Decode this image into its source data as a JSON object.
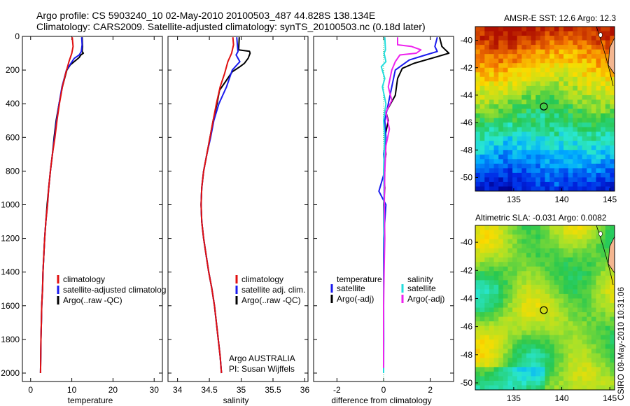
{
  "header": {
    "line1": "Argo profile: CS 5903240_10 02-May-2010 20100503_487 44.828S 138.134E",
    "line2": "Climatology: CARS2009. Satellite-adjusted climatology: synTS_20100503.nc (0.18d later)"
  },
  "colors": {
    "climatology": "#e01010",
    "satellite": "#1a1aee",
    "argo": "#000000",
    "sal_satellite": "#22dddd",
    "sal_argo": "#ee22ee"
  },
  "chart_data": [
    {
      "type": "line",
      "id": "temperature",
      "xlabel": "temperature",
      "ylabel": "",
      "xlim": [
        -2,
        32
      ],
      "ylim": [
        2050,
        0
      ],
      "xticks": [
        0,
        10,
        20,
        30
      ],
      "yticks": [
        0,
        200,
        400,
        600,
        800,
        1000,
        1200,
        1400,
        1600,
        1800,
        2000
      ],
      "legend": {
        "entries": [
          "climatology",
          "satellite-adjusted climatolog",
          "Argo(..raw -QC)"
        ]
      },
      "series": [
        {
          "name": "climatology",
          "role": "climatology",
          "points": [
            [
              10.1,
              5
            ],
            [
              10.3,
              60
            ],
            [
              10.0,
              100
            ],
            [
              9.3,
              150
            ],
            [
              8.5,
              220
            ],
            [
              7.7,
              300
            ],
            [
              7.0,
              400
            ],
            [
              6.4,
              500
            ],
            [
              5.9,
              600
            ],
            [
              5.3,
              700
            ],
            [
              4.8,
              800
            ],
            [
              4.4,
              900
            ],
            [
              4.1,
              1000
            ],
            [
              3.7,
              1100
            ],
            [
              3.4,
              1200
            ],
            [
              3.2,
              1300
            ],
            [
              3.0,
              1400
            ],
            [
              2.9,
              1500
            ],
            [
              2.7,
              1600
            ],
            [
              2.6,
              1700
            ],
            [
              2.5,
              1800
            ],
            [
              2.45,
              1900
            ],
            [
              2.4,
              2000
            ]
          ]
        },
        {
          "name": "satellite-adjusted climatology",
          "role": "satellite",
          "points": [
            [
              12.4,
              5
            ],
            [
              12.5,
              50
            ],
            [
              12.3,
              90
            ],
            [
              11.8,
              110
            ],
            [
              10.6,
              130
            ],
            [
              8.7,
              200
            ],
            [
              7.6,
              300
            ],
            [
              6.9,
              400
            ],
            [
              6.3,
              500
            ],
            [
              5.8,
              600
            ],
            [
              5.3,
              700
            ],
            [
              4.8,
              800
            ],
            [
              4.4,
              900
            ],
            [
              4.1,
              1000
            ],
            [
              3.7,
              1100
            ],
            [
              3.4,
              1200
            ],
            [
              3.2,
              1300
            ],
            [
              3.0,
              1400
            ],
            [
              2.9,
              1500
            ],
            [
              2.7,
              1600
            ],
            [
              2.6,
              1700
            ],
            [
              2.5,
              1800
            ],
            [
              2.45,
              1900
            ],
            [
              2.4,
              2000
            ]
          ]
        },
        {
          "name": "Argo(..raw -QC)",
          "role": "argo",
          "points": [
            [
              12.5,
              5
            ],
            [
              12.6,
              60
            ],
            [
              12.5,
              90
            ],
            [
              12.8,
              100
            ],
            [
              12.2,
              110
            ],
            [
              11.8,
              125
            ],
            [
              9.6,
              170
            ],
            [
              8.8,
              200
            ],
            [
              7.7,
              300
            ],
            [
              6.9,
              400
            ],
            [
              6.2,
              500
            ],
            [
              5.7,
              600
            ],
            [
              5.3,
              700
            ],
            [
              4.8,
              800
            ],
            [
              4.4,
              900
            ],
            [
              4.0,
              1000
            ],
            [
              3.7,
              1100
            ],
            [
              3.4,
              1200
            ],
            [
              3.2,
              1300
            ],
            [
              3.0,
              1400
            ],
            [
              2.9,
              1500
            ],
            [
              2.7,
              1600
            ],
            [
              2.6,
              1700
            ],
            [
              2.5,
              1800
            ],
            [
              2.45,
              1900
            ],
            [
              2.4,
              2000
            ]
          ]
        }
      ]
    },
    {
      "type": "line",
      "id": "salinity",
      "xlabel": "salinity",
      "xlim": [
        33.85,
        36.05
      ],
      "ylim": [
        2050,
        0
      ],
      "xticks": [
        34,
        34.5,
        35,
        35.5,
        36
      ],
      "legend": {
        "entries": [
          "climatology",
          "satellite adj. clim.",
          "Argo(..raw -QC)"
        ]
      },
      "annotation": [
        "Argo AUSTRALIA",
        "PI: Susan Wijffels"
      ],
      "series": [
        {
          "name": "climatology",
          "role": "climatology",
          "points": [
            [
              34.87,
              5
            ],
            [
              34.88,
              50
            ],
            [
              34.85,
              100
            ],
            [
              34.79,
              150
            ],
            [
              34.74,
              220
            ],
            [
              34.67,
              300
            ],
            [
              34.61,
              400
            ],
            [
              34.56,
              500
            ],
            [
              34.51,
              600
            ],
            [
              34.46,
              700
            ],
            [
              34.41,
              800
            ],
            [
              34.38,
              900
            ],
            [
              34.37,
              1000
            ],
            [
              34.38,
              1100
            ],
            [
              34.41,
              1200
            ],
            [
              34.45,
              1300
            ],
            [
              34.49,
              1400
            ],
            [
              34.54,
              1500
            ],
            [
              34.58,
              1600
            ],
            [
              34.61,
              1700
            ],
            [
              34.64,
              1800
            ],
            [
              34.67,
              1900
            ],
            [
              34.69,
              2000
            ]
          ]
        },
        {
          "name": "satellite adj. clim.",
          "role": "satellite",
          "points": [
            [
              34.93,
              5
            ],
            [
              34.94,
              50
            ],
            [
              34.95,
              90
            ],
            [
              34.92,
              110
            ],
            [
              34.98,
              150
            ],
            [
              34.86,
              200
            ],
            [
              34.77,
              300
            ],
            [
              34.65,
              400
            ],
            [
              34.57,
              500
            ],
            [
              34.52,
              600
            ],
            [
              34.46,
              700
            ],
            [
              34.41,
              800
            ],
            [
              34.38,
              900
            ],
            [
              34.37,
              1000
            ],
            [
              34.38,
              1100
            ],
            [
              34.41,
              1200
            ],
            [
              34.45,
              1300
            ],
            [
              34.49,
              1400
            ],
            [
              34.54,
              1500
            ],
            [
              34.58,
              1600
            ],
            [
              34.61,
              1700
            ],
            [
              34.64,
              1800
            ],
            [
              34.67,
              1900
            ],
            [
              34.69,
              2000
            ]
          ]
        },
        {
          "name": "Argo(..raw -QC)",
          "role": "argo",
          "points": [
            [
              34.97,
              5
            ],
            [
              34.96,
              80
            ],
            [
              35.13,
              88
            ],
            [
              35.14,
              100
            ],
            [
              35.11,
              130
            ],
            [
              35.05,
              160
            ],
            [
              34.98,
              180
            ],
            [
              34.86,
              210
            ],
            [
              34.77,
              260
            ],
            [
              34.66,
              320
            ],
            [
              34.62,
              400
            ],
            [
              34.56,
              500
            ],
            [
              34.51,
              600
            ],
            [
              34.46,
              700
            ],
            [
              34.41,
              800
            ],
            [
              34.38,
              900
            ],
            [
              34.37,
              1000
            ],
            [
              34.38,
              1100
            ],
            [
              34.41,
              1200
            ],
            [
              34.45,
              1300
            ],
            [
              34.49,
              1400
            ],
            [
              34.54,
              1500
            ],
            [
              34.58,
              1600
            ],
            [
              34.61,
              1700
            ],
            [
              34.64,
              1800
            ],
            [
              34.67,
              1900
            ],
            [
              34.69,
              2000
            ]
          ]
        }
      ]
    },
    {
      "type": "line",
      "id": "difference",
      "xlabel": "difference from climatology",
      "xlim": [
        -3,
        3
      ],
      "ylim": [
        2050,
        0
      ],
      "xticks": [
        -2,
        0,
        2
      ],
      "legend": {
        "temperature_header": "temperature",
        "salinity_header": "salinity",
        "entries": [
          "satellite",
          "Argo(-adj)",
          "satellite",
          "Argo(-adj)"
        ]
      },
      "series": [
        {
          "name": "temperature satellite",
          "role": "satellite",
          "points": [
            [
              2.3,
              5
            ],
            [
              2.2,
              60
            ],
            [
              2.3,
              90
            ],
            [
              1.8,
              110
            ],
            [
              1.1,
              140
            ],
            [
              0.5,
              200
            ],
            [
              0.35,
              300
            ],
            [
              0.2,
              400
            ],
            [
              0.05,
              500
            ],
            [
              0.1,
              600
            ],
            [
              0.0,
              700
            ],
            [
              0.05,
              800
            ],
            [
              -0.2,
              920
            ],
            [
              0.1,
              1000
            ],
            [
              0.0,
              1200
            ],
            [
              0.0,
              1400
            ],
            [
              0.0,
              1600
            ],
            [
              0.0,
              1800
            ],
            [
              0.0,
              2000
            ]
          ]
        },
        {
          "name": "temperature Argo(-adj)",
          "role": "argo",
          "points": [
            [
              2.4,
              5
            ],
            [
              2.5,
              60
            ],
            [
              2.8,
              100
            ],
            [
              2.3,
              120
            ],
            [
              1.3,
              160
            ],
            [
              0.8,
              190
            ],
            [
              0.6,
              250
            ],
            [
              0.5,
              350
            ],
            [
              0.1,
              450
            ],
            [
              0.2,
              500
            ],
            [
              0.05,
              600
            ],
            [
              0.1,
              700
            ],
            [
              0.0,
              800
            ],
            [
              0.05,
              900
            ],
            [
              0.0,
              1000
            ],
            [
              0.02,
              1200
            ],
            [
              0.0,
              1400
            ],
            [
              0.0,
              1600
            ],
            [
              0.0,
              1800
            ],
            [
              0.0,
              1960
            ]
          ]
        },
        {
          "name": "salinity satellite",
          "role": "sal_satellite",
          "points": [
            [
              0.05,
              5
            ],
            [
              0.08,
              80
            ],
            [
              0.02,
              100
            ],
            [
              0.1,
              150
            ],
            [
              -0.1,
              180
            ],
            [
              0.05,
              250
            ],
            [
              -0.05,
              300
            ],
            [
              0.1,
              400
            ],
            [
              0.0,
              500
            ],
            [
              0.05,
              600
            ],
            [
              0.02,
              700
            ],
            [
              0.0,
              800
            ],
            [
              0.02,
              900
            ],
            [
              0.0,
              1100
            ],
            [
              0.02,
              1300
            ],
            [
              0.0,
              1500
            ],
            [
              0.01,
              1800
            ],
            [
              0.0,
              2000
            ]
          ]
        },
        {
          "name": "salinity Argo(-adj)",
          "role": "sal_argo",
          "points": [
            [
              0.6,
              5
            ],
            [
              0.6,
              50
            ],
            [
              1.2,
              60
            ],
            [
              1.6,
              80
            ],
            [
              1.4,
              100
            ],
            [
              0.7,
              110
            ],
            [
              0.5,
              150
            ],
            [
              0.35,
              200
            ],
            [
              0.2,
              300
            ],
            [
              0.35,
              380
            ],
            [
              0.1,
              450
            ],
            [
              0.25,
              550
            ],
            [
              0.1,
              650
            ],
            [
              0.05,
              800
            ],
            [
              0.03,
              1000
            ],
            [
              0.05,
              1200
            ],
            [
              0.02,
              1400
            ],
            [
              0.0,
              1600
            ],
            [
              0.0,
              1800
            ],
            [
              0.0,
              1970
            ]
          ]
        }
      ]
    },
    {
      "type": "heatmap",
      "id": "sst_map",
      "title": "AMSR-E SST: 12.6 Argo: 12.3",
      "xlim": [
        131,
        145.5
      ],
      "ylim": [
        -51,
        -39
      ],
      "xticks": [
        135,
        140,
        145
      ],
      "yticks": [
        -40,
        -42,
        -44,
        -46,
        -48,
        -50
      ],
      "marker": {
        "lon": 138.134,
        "lat": -44.828
      }
    },
    {
      "type": "heatmap",
      "id": "sla_map",
      "title": "Altimetric SLA: -0.031 Argo: 0.0082",
      "xlim": [
        131,
        145.5
      ],
      "ylim": [
        -50.5,
        -38.8
      ],
      "xticks": [
        135,
        140,
        145
      ],
      "yticks": [
        -40,
        -42,
        -44,
        -46,
        -48,
        -50
      ],
      "marker": {
        "lon": 138.134,
        "lat": -44.828
      },
      "stamp": "CSIRO 09-May-2010 10:31:06"
    }
  ]
}
